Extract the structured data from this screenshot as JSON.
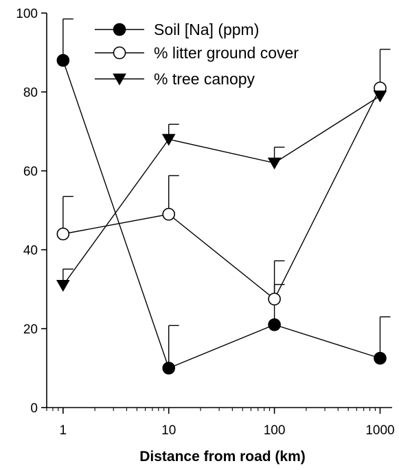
{
  "chart_data": {
    "type": "line",
    "xlabel": "Distance from road (km)",
    "ylabel": "",
    "x_scale": "log",
    "x": [
      1,
      10,
      100,
      1000
    ],
    "x_tick_labels": [
      "1",
      "10",
      "100",
      "1000"
    ],
    "xlim": [
      0.7,
      1300
    ],
    "ylim": [
      0,
      100
    ],
    "y_ticks": [
      0,
      20,
      40,
      60,
      80,
      100
    ],
    "y_tick_labels": [
      "0",
      "20",
      "40",
      "60",
      "80",
      "100"
    ],
    "grid": false,
    "legend_position": "top",
    "series": [
      {
        "name": "Soil [Na] (ppm)",
        "marker": "filled-circle",
        "values": [
          88,
          10,
          21,
          12.5
        ],
        "error_upper": [
          98.5,
          20.8,
          31.2,
          23
        ]
      },
      {
        "name": "% litter ground cover",
        "marker": "open-circle",
        "values": [
          44,
          49,
          27.5,
          81
        ],
        "error_upper": [
          53.5,
          58.8,
          37.2,
          90.8
        ]
      },
      {
        "name": "% tree canopy",
        "marker": "filled-triangle-down",
        "values": [
          31,
          68,
          62,
          79
        ],
        "error_upper": [
          35.1,
          71.8,
          66,
          79
        ]
      }
    ]
  }
}
